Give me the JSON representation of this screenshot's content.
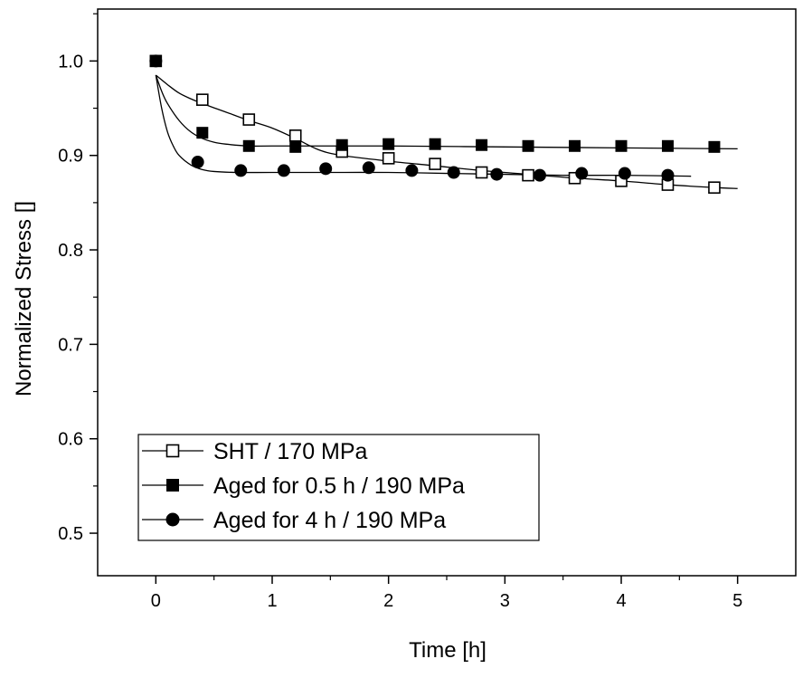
{
  "chart_data": {
    "type": "scatter",
    "title": "",
    "xlabel": "Time [h]",
    "ylabel": "Normalized Stress []",
    "xlim": [
      -0.5,
      5.5
    ],
    "ylim": [
      0.455,
      1.055
    ],
    "x_ticks": [
      0,
      1,
      2,
      3,
      4,
      5
    ],
    "x_tick_labels": [
      "0",
      "1",
      "2",
      "3",
      "4",
      "5"
    ],
    "y_ticks": [
      0.5,
      0.6,
      0.7,
      0.8,
      0.9,
      1.0
    ],
    "y_tick_labels": [
      "0.5",
      "0.6",
      "0.7",
      "0.8",
      "0.9",
      "1.0"
    ],
    "grid": false,
    "legend_position": "bottom-left",
    "series": [
      {
        "name": "SHT / 170 MPa",
        "marker": "open-square",
        "x": [
          0.0,
          0.4,
          0.8,
          1.2,
          1.6,
          2.0,
          2.4,
          2.8,
          3.2,
          3.6,
          4.0,
          4.4,
          4.8
        ],
        "y": [
          1.0,
          0.959,
          0.938,
          0.921,
          0.904,
          0.897,
          0.891,
          0.882,
          0.879,
          0.876,
          0.873,
          0.869,
          0.866
        ],
        "fit_x": [
          0.0,
          0.1,
          0.2,
          0.3,
          0.4,
          0.6,
          0.8,
          1.0,
          1.2,
          1.4,
          1.6,
          2.0,
          2.4,
          2.8,
          3.2,
          3.6,
          4.0,
          4.4,
          4.8,
          5.0
        ],
        "fit_y": [
          0.985,
          0.975,
          0.966,
          0.96,
          0.955,
          0.946,
          0.937,
          0.929,
          0.918,
          0.906,
          0.9,
          0.894,
          0.889,
          0.884,
          0.88,
          0.876,
          0.873,
          0.869,
          0.866,
          0.865
        ]
      },
      {
        "name": "Aged for 0.5 h / 190 MPa",
        "marker": "filled-square",
        "x": [
          0.0,
          0.4,
          0.8,
          1.2,
          1.6,
          2.0,
          2.4,
          2.8,
          3.2,
          3.6,
          4.0,
          4.4,
          4.8
        ],
        "y": [
          1.0,
          0.924,
          0.91,
          0.909,
          0.911,
          0.912,
          0.912,
          0.911,
          0.91,
          0.91,
          0.91,
          0.91,
          0.909
        ],
        "fit_x": [
          0.0,
          0.05,
          0.1,
          0.2,
          0.3,
          0.4,
          0.5,
          0.6,
          0.8,
          1.0,
          1.5,
          2.0,
          3.0,
          4.0,
          5.0
        ],
        "fit_y": [
          0.985,
          0.968,
          0.955,
          0.937,
          0.925,
          0.918,
          0.914,
          0.912,
          0.91,
          0.91,
          0.91,
          0.91,
          0.909,
          0.908,
          0.907
        ]
      },
      {
        "name": "Aged for 4 h / 190 MPa",
        "marker": "filled-circle",
        "x": [
          0.0,
          0.36,
          0.73,
          1.1,
          1.46,
          1.83,
          2.2,
          2.56,
          2.93,
          3.3,
          3.66,
          4.03,
          4.4
        ],
        "y": [
          1.0,
          0.893,
          0.884,
          0.884,
          0.886,
          0.887,
          0.884,
          0.882,
          0.88,
          0.879,
          0.881,
          0.881,
          0.879
        ],
        "fit_x": [
          0.0,
          0.05,
          0.1,
          0.15,
          0.2,
          0.3,
          0.4,
          0.5,
          0.7,
          1.0,
          1.5,
          2.0,
          2.5,
          3.0,
          3.5,
          4.0,
          4.6
        ],
        "fit_y": [
          0.985,
          0.95,
          0.925,
          0.91,
          0.9,
          0.89,
          0.885,
          0.883,
          0.882,
          0.882,
          0.882,
          0.882,
          0.881,
          0.88,
          0.879,
          0.879,
          0.878
        ]
      }
    ]
  }
}
